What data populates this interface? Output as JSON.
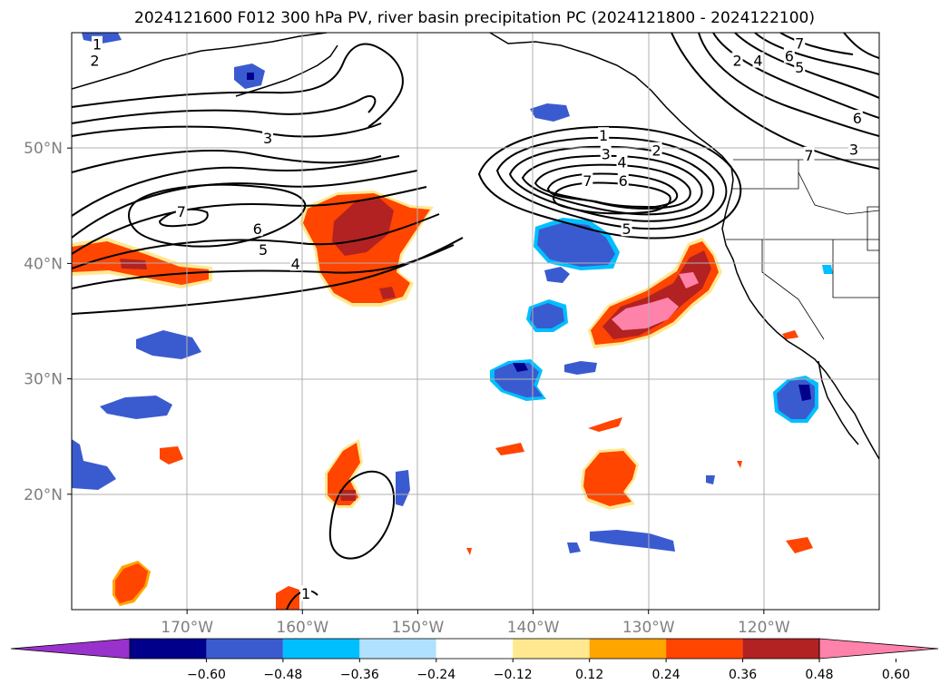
{
  "title": "2024121600 F012 300 hPa PV, river basin precipitation PC (2024121800 - 2024122100)",
  "map": {
    "lon_range": [
      -180,
      -110
    ],
    "lat_range": [
      10,
      60
    ],
    "lon_ticks": [
      {
        "value": -170,
        "label": "170°W"
      },
      {
        "value": -160,
        "label": "160°W"
      },
      {
        "value": -150,
        "label": "150°W"
      },
      {
        "value": -140,
        "label": "140°W"
      },
      {
        "value": -130,
        "label": "130°W"
      },
      {
        "value": -120,
        "label": "120°W"
      }
    ],
    "lat_ticks": [
      {
        "value": 50,
        "label": "50°N"
      },
      {
        "value": 40,
        "label": "40°N"
      },
      {
        "value": 30,
        "label": "30°N"
      },
      {
        "value": 20,
        "label": "20°N"
      }
    ],
    "grid": true
  },
  "colorbar": {
    "colors": [
      "#9932cc",
      "#00008b",
      "#3a5bd0",
      "#00bfff",
      "#b0e2ff",
      "#ffffff",
      "#ffe88f",
      "#ffa500",
      "#ff4500",
      "#b22222",
      "#ff82ab"
    ],
    "labels": [
      "−0.60",
      "−0.48",
      "−0.36",
      "−0.24",
      "−0.12",
      "0.12",
      "0.24",
      "0.36",
      "0.48",
      "0.60"
    ],
    "extend": "both"
  },
  "pv_contour_labels": [
    {
      "text": "1",
      "lon": -177.8,
      "lat": 59.0
    },
    {
      "text": "2",
      "lon": -178.0,
      "lat": 57.6
    },
    {
      "text": "3",
      "lon": -163.0,
      "lat": 50.9
    },
    {
      "text": "7",
      "lon": -170.5,
      "lat": 44.5
    },
    {
      "text": "6",
      "lon": -163.9,
      "lat": 43.0
    },
    {
      "text": "5",
      "lon": -163.4,
      "lat": 41.2
    },
    {
      "text": "4",
      "lon": -160.6,
      "lat": 40.0
    },
    {
      "text": "1",
      "lon": -133.9,
      "lat": 51.1
    },
    {
      "text": "2",
      "lon": -129.3,
      "lat": 49.8
    },
    {
      "text": "3",
      "lon": -133.7,
      "lat": 49.5
    },
    {
      "text": "4",
      "lon": -132.3,
      "lat": 48.8
    },
    {
      "text": "7",
      "lon": -135.3,
      "lat": 47.2
    },
    {
      "text": "6",
      "lon": -132.2,
      "lat": 47.2
    },
    {
      "text": "5",
      "lon": -131.9,
      "lat": 43.0
    },
    {
      "text": "7",
      "lon": -116.9,
      "lat": 59.1
    },
    {
      "text": "6",
      "lon": -117.8,
      "lat": 58.0
    },
    {
      "text": "4",
      "lon": -120.5,
      "lat": 57.6
    },
    {
      "text": "2",
      "lon": -122.3,
      "lat": 57.6
    },
    {
      "text": "5",
      "lon": -116.9,
      "lat": 57.0
    },
    {
      "text": "6",
      "lon": -111.9,
      "lat": 52.6
    },
    {
      "text": "7",
      "lon": -116.1,
      "lat": 49.4
    },
    {
      "text": "3",
      "lon": -112.2,
      "lat": 49.9
    },
    {
      "text": "1",
      "lon": -159.7,
      "lat": 11.4
    }
  ]
}
